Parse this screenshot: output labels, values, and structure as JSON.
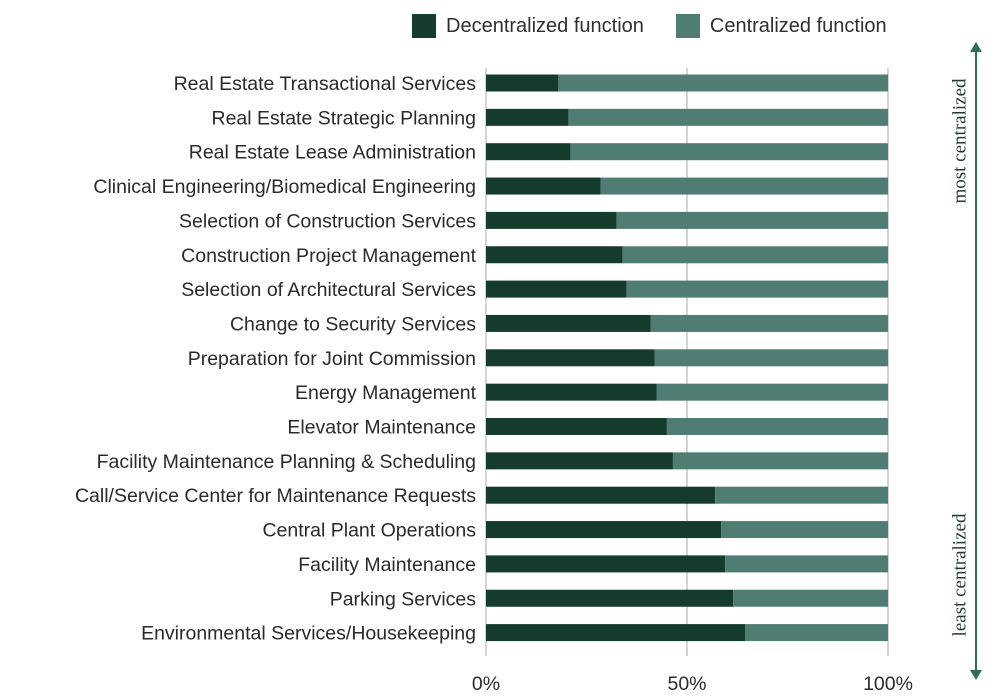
{
  "chart_data": {
    "type": "bar",
    "orientation": "horizontal",
    "stacked": true,
    "percent_stacked": true,
    "categories": [
      "Real Estate Transactional Services",
      "Real Estate Strategic Planning",
      "Real Estate Lease Administration",
      "Clinical Engineering/Biomedical Engineering",
      "Selection of Construction Services",
      "Construction Project Management",
      "Selection of Architectural Services",
      "Change to Security Services",
      "Preparation for Joint Commission",
      "Energy Management",
      "Elevator Maintenance",
      "Facility Maintenance Planning & Scheduling",
      "Call/Service Center for Maintenance Requests",
      "Central Plant Operations",
      "Facility Maintenance",
      "Parking Services",
      "Environmental Services/Housekeeping"
    ],
    "series": [
      {
        "name": "Decentralized function",
        "color": "#143b2c",
        "values": [
          18,
          20.5,
          21,
          28.5,
          32.5,
          34,
          35,
          41,
          42,
          42.5,
          45,
          46.5,
          57,
          58.5,
          59.5,
          61.5,
          64.5
        ]
      },
      {
        "name": "Centralized function",
        "color": "#4f7d73",
        "values": [
          82,
          79.5,
          79,
          71.5,
          67.5,
          66,
          65,
          59,
          58,
          57.5,
          55,
          53.5,
          43,
          41.5,
          40.5,
          38.5,
          35.5
        ]
      }
    ],
    "xlim": [
      0,
      100
    ],
    "xticks": [
      "0%",
      "50%",
      "100%"
    ],
    "grid": true,
    "legend_position": "top-right",
    "annotations": {
      "top": "most centralized",
      "bottom": "least centralized"
    }
  },
  "colors": {
    "gridline": "#a9a9a9",
    "axis_arrow": "#2f6e5e",
    "label_text": "#2a2a2a"
  }
}
